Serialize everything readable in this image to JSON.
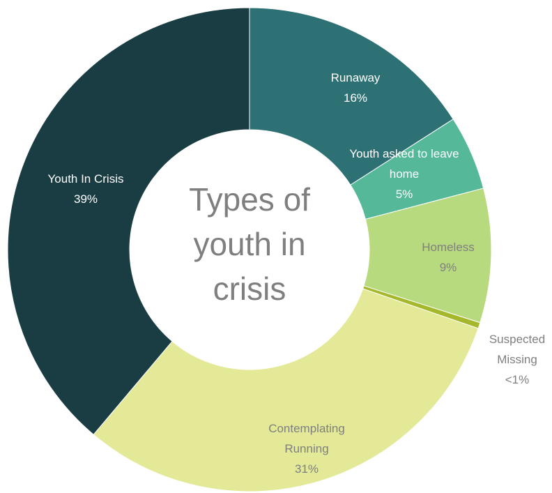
{
  "chart_data": {
    "type": "pie",
    "variant": "donut",
    "title_lines": [
      "Types of",
      "youth in",
      "crisis"
    ],
    "legend": "none",
    "slices": [
      {
        "name": "Runaway",
        "value": 16,
        "value_label": "16%",
        "color": "#2e7174",
        "label_color": "#ffffff"
      },
      {
        "name": "Youth asked to leave home",
        "value": 5,
        "value_label": "5%",
        "color": "#55b999",
        "label_color": "#ffffff"
      },
      {
        "name": "Homeless",
        "value": 9,
        "value_label": "9%",
        "color": "#b8da7f",
        "label_color": "#7f7f7f"
      },
      {
        "name": "Suspected Missing",
        "value": 0.4,
        "value_label": "<1%",
        "color": "#a5b82c",
        "label_color": "#7f7f7f"
      },
      {
        "name": "Contemplating Running",
        "value": 31,
        "value_label": "31%",
        "color": "#e3e997",
        "label_color": "#7f7f7f"
      },
      {
        "name": "Youth In Crisis",
        "value": 39,
        "value_label": "39%",
        "color": "#1a3d43",
        "label_color": "#ffffff"
      }
    ],
    "title_color": "#7f7f7f",
    "separator_color": "#ffffff"
  }
}
